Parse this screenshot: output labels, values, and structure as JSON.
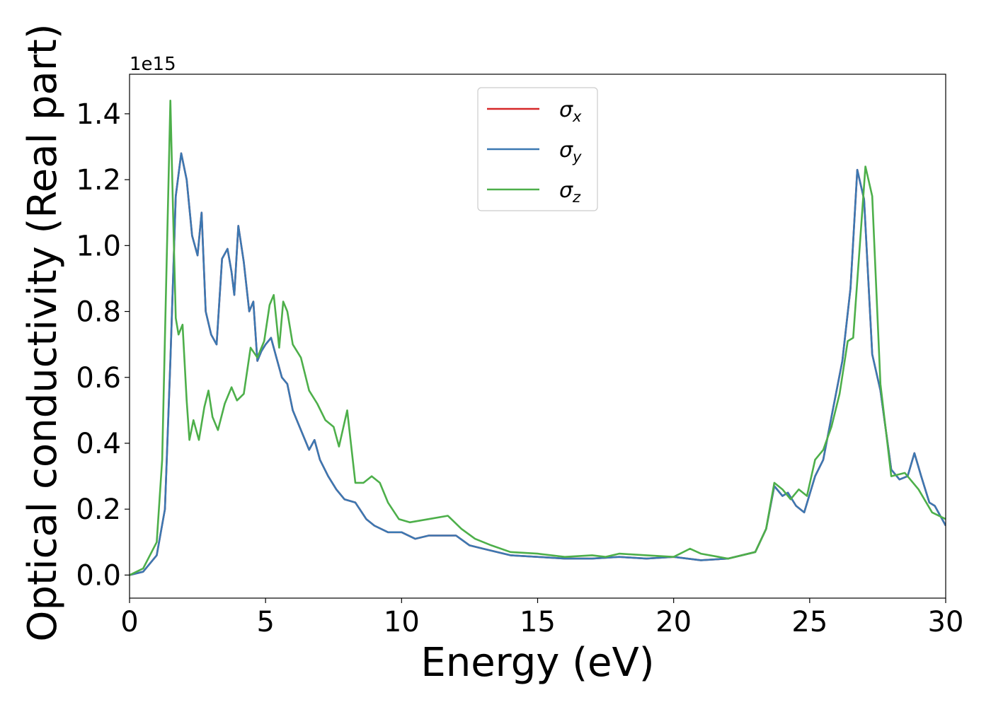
{
  "chart_data": {
    "type": "line",
    "title": "",
    "xlabel": "Energy (eV)",
    "ylabel": "Optical conductivity (Real part)",
    "y_offset_text": "1e15",
    "xlim": [
      0,
      30
    ],
    "ylim": [
      -0.07,
      1.52
    ],
    "x_ticks": [
      0,
      5,
      10,
      15,
      20,
      25,
      30
    ],
    "y_ticks": [
      0.0,
      0.2,
      0.4,
      0.6,
      0.8,
      1.0,
      1.2,
      1.4
    ],
    "x_tick_labels": [
      "0",
      "5",
      "10",
      "15",
      "20",
      "25",
      "30"
    ],
    "y_tick_labels": [
      "0.0",
      "0.2",
      "0.4",
      "0.6",
      "0.8",
      "1.0",
      "1.2",
      "1.4"
    ],
    "grid": false,
    "legend_position": "top-center",
    "series": [
      {
        "name": "σx",
        "symbol": "σ",
        "subscript": "x",
        "color": "#d62728",
        "x": [
          0,
          0.5,
          1.0,
          1.3,
          1.5,
          1.7,
          1.9,
          2.1,
          2.3,
          2.5,
          2.65,
          2.8,
          3.0,
          3.2,
          3.4,
          3.6,
          3.75,
          3.85,
          4.0,
          4.2,
          4.4,
          4.55,
          4.7,
          4.85,
          5.0,
          5.2,
          5.4,
          5.6,
          5.8,
          6.0,
          6.3,
          6.6,
          6.8,
          7.0,
          7.3,
          7.6,
          7.9,
          8.3,
          8.7,
          9.0,
          9.5,
          10.0,
          10.5,
          11.0,
          11.5,
          12.0,
          12.5,
          13.0,
          14.0,
          15.0,
          16.0,
          17.0,
          18.0,
          19.0,
          20.0,
          21.0,
          22.0,
          23.0,
          23.4,
          23.7,
          24.0,
          24.2,
          24.5,
          24.8,
          25.2,
          25.5,
          25.8,
          26.2,
          26.5,
          26.75,
          27.0,
          27.3,
          27.6,
          28.0,
          28.3,
          28.6,
          28.85,
          29.1,
          29.4,
          29.6,
          30.0
        ],
        "values": [
          0.0,
          0.01,
          0.06,
          0.2,
          0.65,
          1.15,
          1.28,
          1.2,
          1.03,
          0.97,
          1.1,
          0.8,
          0.73,
          0.7,
          0.96,
          0.99,
          0.92,
          0.85,
          1.06,
          0.95,
          0.8,
          0.83,
          0.65,
          0.68,
          0.7,
          0.72,
          0.66,
          0.6,
          0.58,
          0.5,
          0.44,
          0.38,
          0.41,
          0.35,
          0.3,
          0.26,
          0.23,
          0.22,
          0.17,
          0.15,
          0.13,
          0.13,
          0.11,
          0.12,
          0.12,
          0.12,
          0.09,
          0.08,
          0.06,
          0.055,
          0.05,
          0.05,
          0.055,
          0.05,
          0.055,
          0.045,
          0.05,
          0.07,
          0.14,
          0.27,
          0.24,
          0.25,
          0.21,
          0.19,
          0.3,
          0.35,
          0.48,
          0.65,
          0.87,
          1.23,
          1.14,
          0.67,
          0.56,
          0.32,
          0.29,
          0.3,
          0.37,
          0.3,
          0.22,
          0.21,
          0.15
        ]
      },
      {
        "name": "σy",
        "symbol": "σ",
        "subscript": "y",
        "color": "#3b78b2",
        "x": [
          0,
          0.5,
          1.0,
          1.3,
          1.5,
          1.7,
          1.9,
          2.1,
          2.3,
          2.5,
          2.65,
          2.8,
          3.0,
          3.2,
          3.4,
          3.6,
          3.75,
          3.85,
          4.0,
          4.2,
          4.4,
          4.55,
          4.7,
          4.85,
          5.0,
          5.2,
          5.4,
          5.6,
          5.8,
          6.0,
          6.3,
          6.6,
          6.8,
          7.0,
          7.3,
          7.6,
          7.9,
          8.3,
          8.7,
          9.0,
          9.5,
          10.0,
          10.5,
          11.0,
          11.5,
          12.0,
          12.5,
          13.0,
          14.0,
          15.0,
          16.0,
          17.0,
          18.0,
          19.0,
          20.0,
          21.0,
          22.0,
          23.0,
          23.4,
          23.7,
          24.0,
          24.2,
          24.5,
          24.8,
          25.2,
          25.5,
          25.8,
          26.2,
          26.5,
          26.75,
          27.0,
          27.3,
          27.6,
          28.0,
          28.3,
          28.6,
          28.85,
          29.1,
          29.4,
          29.6,
          30.0
        ],
        "values": [
          0.0,
          0.01,
          0.06,
          0.2,
          0.65,
          1.15,
          1.28,
          1.2,
          1.03,
          0.97,
          1.1,
          0.8,
          0.73,
          0.7,
          0.96,
          0.99,
          0.92,
          0.85,
          1.06,
          0.95,
          0.8,
          0.83,
          0.65,
          0.68,
          0.7,
          0.72,
          0.66,
          0.6,
          0.58,
          0.5,
          0.44,
          0.38,
          0.41,
          0.35,
          0.3,
          0.26,
          0.23,
          0.22,
          0.17,
          0.15,
          0.13,
          0.13,
          0.11,
          0.12,
          0.12,
          0.12,
          0.09,
          0.08,
          0.06,
          0.055,
          0.05,
          0.05,
          0.055,
          0.05,
          0.055,
          0.045,
          0.05,
          0.07,
          0.14,
          0.27,
          0.24,
          0.25,
          0.21,
          0.19,
          0.3,
          0.35,
          0.48,
          0.65,
          0.87,
          1.23,
          1.14,
          0.67,
          0.56,
          0.32,
          0.29,
          0.3,
          0.37,
          0.3,
          0.22,
          0.21,
          0.15
        ]
      },
      {
        "name": "σz",
        "symbol": "σ",
        "subscript": "z",
        "color": "#4daf4a",
        "x": [
          0,
          0.5,
          1.0,
          1.2,
          1.35,
          1.5,
          1.6,
          1.7,
          1.8,
          1.95,
          2.1,
          2.2,
          2.35,
          2.55,
          2.75,
          2.9,
          3.05,
          3.25,
          3.5,
          3.75,
          3.95,
          4.2,
          4.45,
          4.7,
          4.95,
          5.15,
          5.3,
          5.5,
          5.65,
          5.8,
          6.0,
          6.3,
          6.6,
          6.9,
          7.2,
          7.5,
          7.7,
          8.0,
          8.3,
          8.6,
          8.9,
          9.2,
          9.5,
          9.9,
          10.3,
          11.0,
          11.7,
          12.2,
          12.7,
          13.3,
          14.0,
          15.0,
          16.0,
          17.0,
          17.5,
          18.0,
          19.0,
          20.0,
          20.6,
          21.0,
          22.0,
          23.0,
          23.4,
          23.7,
          24.0,
          24.3,
          24.6,
          24.9,
          25.2,
          25.5,
          25.8,
          26.1,
          26.4,
          26.6,
          26.8,
          27.05,
          27.3,
          27.6,
          28.0,
          28.5,
          29.0,
          29.5,
          30.0
        ],
        "values": [
          0.0,
          0.02,
          0.1,
          0.35,
          0.9,
          1.44,
          1.1,
          0.78,
          0.73,
          0.76,
          0.53,
          0.41,
          0.47,
          0.41,
          0.51,
          0.56,
          0.48,
          0.44,
          0.52,
          0.57,
          0.53,
          0.55,
          0.69,
          0.66,
          0.71,
          0.82,
          0.85,
          0.69,
          0.83,
          0.8,
          0.7,
          0.66,
          0.56,
          0.52,
          0.47,
          0.45,
          0.39,
          0.5,
          0.28,
          0.28,
          0.3,
          0.28,
          0.22,
          0.17,
          0.16,
          0.17,
          0.18,
          0.14,
          0.11,
          0.09,
          0.07,
          0.065,
          0.055,
          0.06,
          0.055,
          0.065,
          0.06,
          0.055,
          0.08,
          0.065,
          0.05,
          0.07,
          0.14,
          0.28,
          0.26,
          0.23,
          0.26,
          0.24,
          0.35,
          0.38,
          0.45,
          0.55,
          0.71,
          0.72,
          0.95,
          1.24,
          1.15,
          0.58,
          0.3,
          0.31,
          0.26,
          0.19,
          0.17
        ]
      }
    ]
  }
}
